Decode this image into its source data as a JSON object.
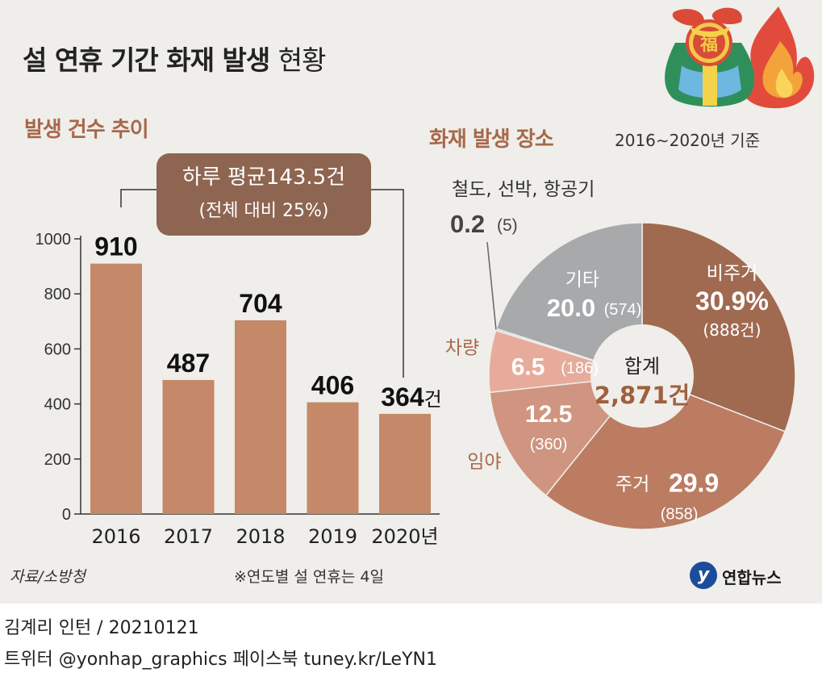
{
  "title_bold": "설 연휴 기간 화재 발생",
  "title_light": "현황",
  "left_section": "발생 건수 추이",
  "right_section": "화재 발생 장소",
  "basis": "2016∼2020년 기준",
  "callout_line1": "하루 평균143.5건",
  "callout_line2": "(전체 대비 25%)",
  "source": "자료/소방청",
  "note": "※연도별 설 연휴는 4일",
  "brand": "연합뉴스",
  "footer_line1": "김계리 인턴 / 20210121",
  "footer_line2": "트위터 @yonhap_graphics  페이스북 tuney.kr/LeYN1",
  "chart_data": [
    {
      "type": "bar",
      "categories": [
        "2016",
        "2017",
        "2018",
        "2019",
        "2020년"
      ],
      "values": [
        910,
        487,
        704,
        406,
        364
      ],
      "value_labels": [
        "910",
        "487",
        "704",
        "406",
        "364건"
      ],
      "yticks": [
        "0",
        "200",
        "400",
        "600",
        "800",
        "1000"
      ],
      "ylim": [
        0,
        1000
      ],
      "title": "발생 건수 추이",
      "color": "#c58868"
    },
    {
      "type": "pie",
      "title": "화재 발생 장소",
      "center_label": "합계",
      "center_value": "2,871건",
      "slices": [
        {
          "name": "비주거",
          "percent": 30.9,
          "value_text": "30.9%",
          "count_text": "(888건)",
          "color": "#a06a51"
        },
        {
          "name": "주거",
          "percent": 29.9,
          "value_text": "29.9",
          "count_text": "(858)",
          "color": "#bb7c62"
        },
        {
          "name": "임야",
          "percent": 12.5,
          "value_text": "12.5",
          "count_text": "(360)",
          "color": "#cf9580"
        },
        {
          "name": "차량",
          "percent": 6.5,
          "value_text": "6.5",
          "count_text": "(186)",
          "color": "#e7ab9c"
        },
        {
          "name": "철도, 선박, 항공기",
          "percent": 0.2,
          "value_text": "0.2",
          "count_text": "(5)",
          "color": "#c7d2d8"
        },
        {
          "name": "기타",
          "percent": 20.0,
          "value_text": "20.0",
          "count_text": "(574)",
          "color": "#a7a9ab"
        }
      ]
    }
  ]
}
